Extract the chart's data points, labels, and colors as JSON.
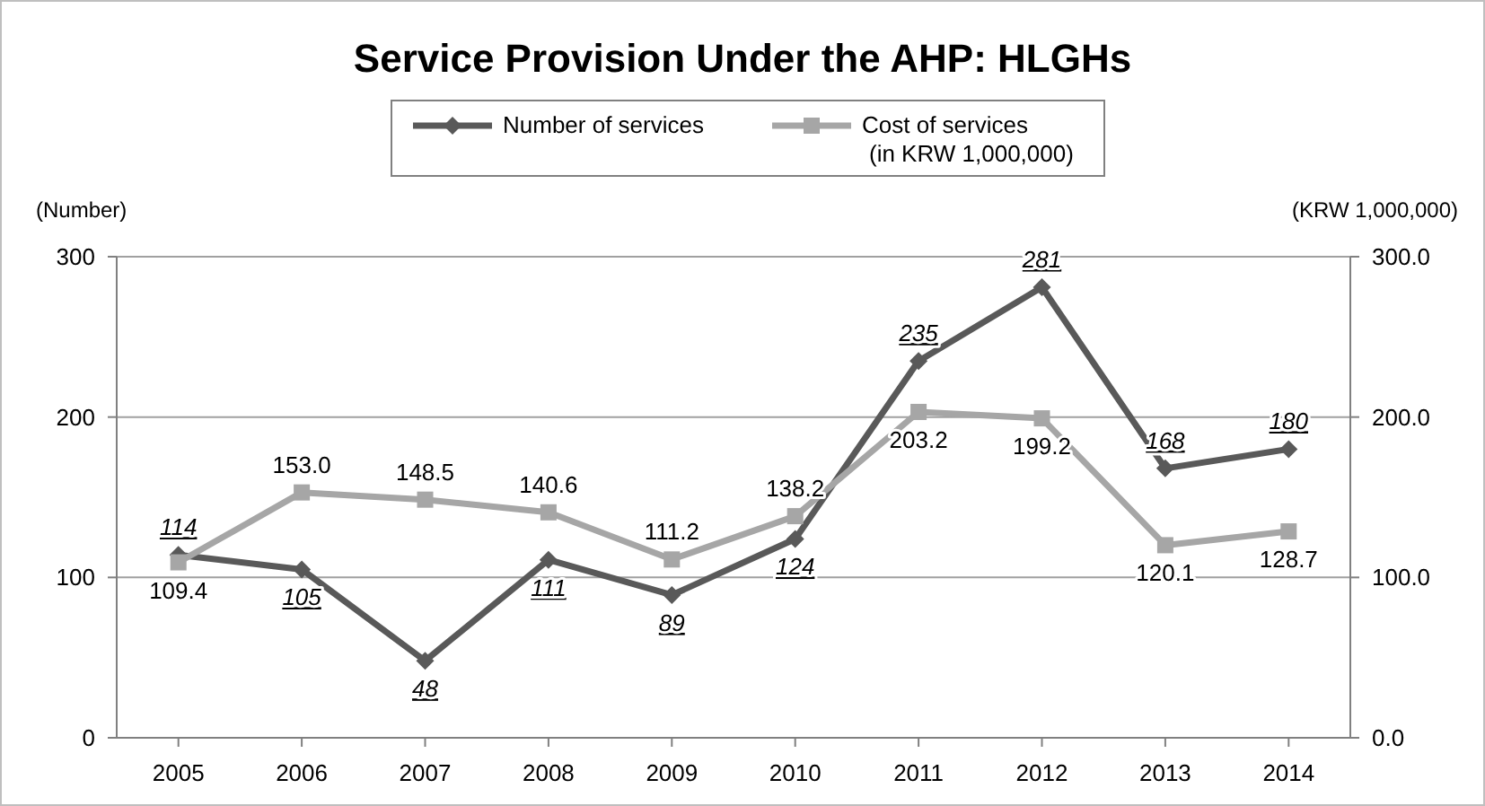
{
  "chart_data": {
    "type": "line",
    "title": "Service Provision Under the AHP: HLGHs",
    "ylabel": "(Number)",
    "y2label": "(KRW 1,000,000)",
    "categories": [
      "2005",
      "2006",
      "2007",
      "2008",
      "2009",
      "2010",
      "2011",
      "2012",
      "2013",
      "2014"
    ],
    "series": [
      {
        "name": "Number of services",
        "color": "#595959",
        "marker": "diamond",
        "values": [
          114,
          105,
          48,
          111,
          89,
          124,
          235,
          281,
          168,
          180
        ],
        "value_labels": [
          "114",
          "105",
          "48",
          "111",
          "89",
          "124",
          "235",
          "281",
          "168",
          "180"
        ]
      },
      {
        "name": "Cost of services (in KRW 1,000,000)",
        "color": "#a6a6a6",
        "marker": "square",
        "axis": "y2",
        "values": [
          109.4,
          153.0,
          148.5,
          140.6,
          111.2,
          138.2,
          203.2,
          199.2,
          120.1,
          128.7
        ],
        "value_labels": [
          "109.4",
          "153.0",
          "148.5",
          "140.6",
          "111.2",
          "138.2",
          "203.2",
          "199.2",
          "120.1",
          "128.7"
        ]
      }
    ],
    "ylim": [
      0,
      300
    ],
    "yticks": [
      0,
      100,
      200,
      300
    ],
    "y2lim": [
      0,
      300
    ],
    "y2ticks": [
      {
        "value": 0,
        "label": "0.0"
      },
      {
        "value": 100,
        "label": "100.0"
      },
      {
        "value": 200,
        "label": "200.0"
      },
      {
        "value": 300,
        "label": "300.0"
      }
    ],
    "grid": "y",
    "legend": "top",
    "line_style": "solid"
  }
}
